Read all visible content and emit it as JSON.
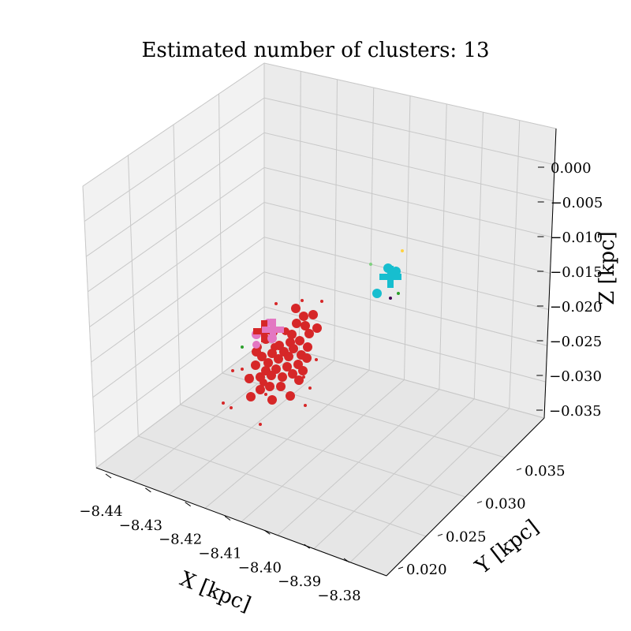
{
  "chart_data": {
    "type": "scatter3d",
    "title": "Estimated number of clusters: 13",
    "xlabel": "X [kpc]",
    "ylabel": "Y [kpc]",
    "zlabel": "Z [kpc]",
    "x_ticks": [
      "−8.44",
      "−8.43",
      "−8.42",
      "−8.41",
      "−8.40",
      "−8.39",
      "−8.38"
    ],
    "y_ticks": [
      "0.020",
      "0.025",
      "0.030",
      "0.035"
    ],
    "z_ticks": [
      "0.000",
      "−0.005",
      "−0.010",
      "−0.015",
      "−0.020",
      "−0.025",
      "−0.030",
      "−0.035"
    ],
    "grid": true,
    "colors": {
      "main_cluster": "#d62728",
      "pink_cluster": "#e377c2",
      "cyan_cluster": "#17becf",
      "noise_green": "#2ca02c",
      "noise_lightgreen": "#7fd17f",
      "noise_yellow": "#ffd23f",
      "noise_purple": "#440154",
      "pane": "#f2f2f2",
      "grid": "#c8c8c8"
    },
    "clusters": [
      {
        "color": "#d62728",
        "centroid": [
          335,
          420
        ],
        "points": [
          [
            375,
            391,
            6
          ],
          [
            385,
            401,
            6
          ],
          [
            397,
            399,
            6
          ],
          [
            402,
            416,
            6
          ],
          [
            376,
            410,
            6
          ],
          [
            387,
            413,
            6
          ],
          [
            370,
            424,
            6
          ],
          [
            392,
            423,
            6
          ],
          [
            346,
            421,
            6
          ],
          [
            337,
            430,
            6
          ],
          [
            354,
            438,
            6
          ],
          [
            368,
            434,
            6
          ],
          [
            380,
            432,
            6
          ],
          [
            390,
            440,
            6
          ],
          [
            372,
            442,
            6
          ],
          [
            360,
            446,
            6
          ],
          [
            345,
            448,
            6
          ],
          [
            332,
            452,
            6
          ],
          [
            325,
            446,
            6
          ],
          [
            340,
            460,
            6
          ],
          [
            353,
            455,
            6
          ],
          [
            366,
            452,
            6
          ],
          [
            382,
            450,
            6
          ],
          [
            389,
            454,
            6
          ],
          [
            378,
            462,
            6
          ],
          [
            364,
            465,
            6
          ],
          [
            350,
            468,
            6
          ],
          [
            337,
            470,
            6
          ],
          [
            324,
            463,
            6
          ],
          [
            316,
            480,
            6
          ],
          [
            330,
            478,
            6
          ],
          [
            344,
            476,
            6
          ],
          [
            358,
            478,
            6
          ],
          [
            371,
            474,
            6
          ],
          [
            384,
            470,
            6
          ],
          [
            342,
            490,
            6
          ],
          [
            356,
            490,
            6
          ],
          [
            330,
            494,
            6
          ],
          [
            318,
            503,
            6
          ],
          [
            345,
            507,
            6
          ],
          [
            368,
            502,
            6
          ],
          [
            379,
            482,
            6
          ],
          [
            348,
            440,
            5
          ],
          [
            362,
            420,
            5
          ],
          [
            334,
            485,
            5
          ],
          [
            327,
            440,
            5
          ],
          [
            350,
            385,
            2
          ],
          [
            383,
            381,
            2
          ],
          [
            408,
            382,
            2
          ],
          [
            401,
            456,
            2
          ],
          [
            295,
            470,
            2
          ],
          [
            307,
            468,
            2
          ],
          [
            337,
            500,
            2
          ],
          [
            318,
            476,
            2
          ],
          [
            385,
            478,
            2
          ],
          [
            393,
            492,
            2
          ],
          [
            387,
            514,
            2
          ],
          [
            283,
            511,
            2
          ],
          [
            293,
            517,
            2
          ],
          [
            330,
            538,
            2
          ]
        ]
      },
      {
        "color": "#e377c2",
        "centroid": [
          346,
          418
        ],
        "points": [
          [
            325,
            424,
            6
          ],
          [
            345,
            429,
            6
          ],
          [
            325,
            437,
            5
          ],
          [
            340,
            409,
            5
          ]
        ]
      },
      {
        "color": "#17becf",
        "centroid": [
          495,
          351
        ],
        "points": [
          [
            492,
            340,
            6
          ],
          [
            502,
            344,
            6
          ],
          [
            478,
            372,
            6
          ]
        ]
      },
      {
        "color": "#2ca02c",
        "points": [
          [
            307,
            440,
            2
          ],
          [
            505,
            372,
            2
          ]
        ]
      },
      {
        "color": "#7fd17f",
        "points": [
          [
            470,
            335,
            2
          ]
        ]
      },
      {
        "color": "#ffd23f",
        "points": [
          [
            510,
            318,
            2
          ]
        ]
      },
      {
        "color": "#440154",
        "points": [
          [
            495,
            378,
            2
          ]
        ]
      }
    ]
  }
}
